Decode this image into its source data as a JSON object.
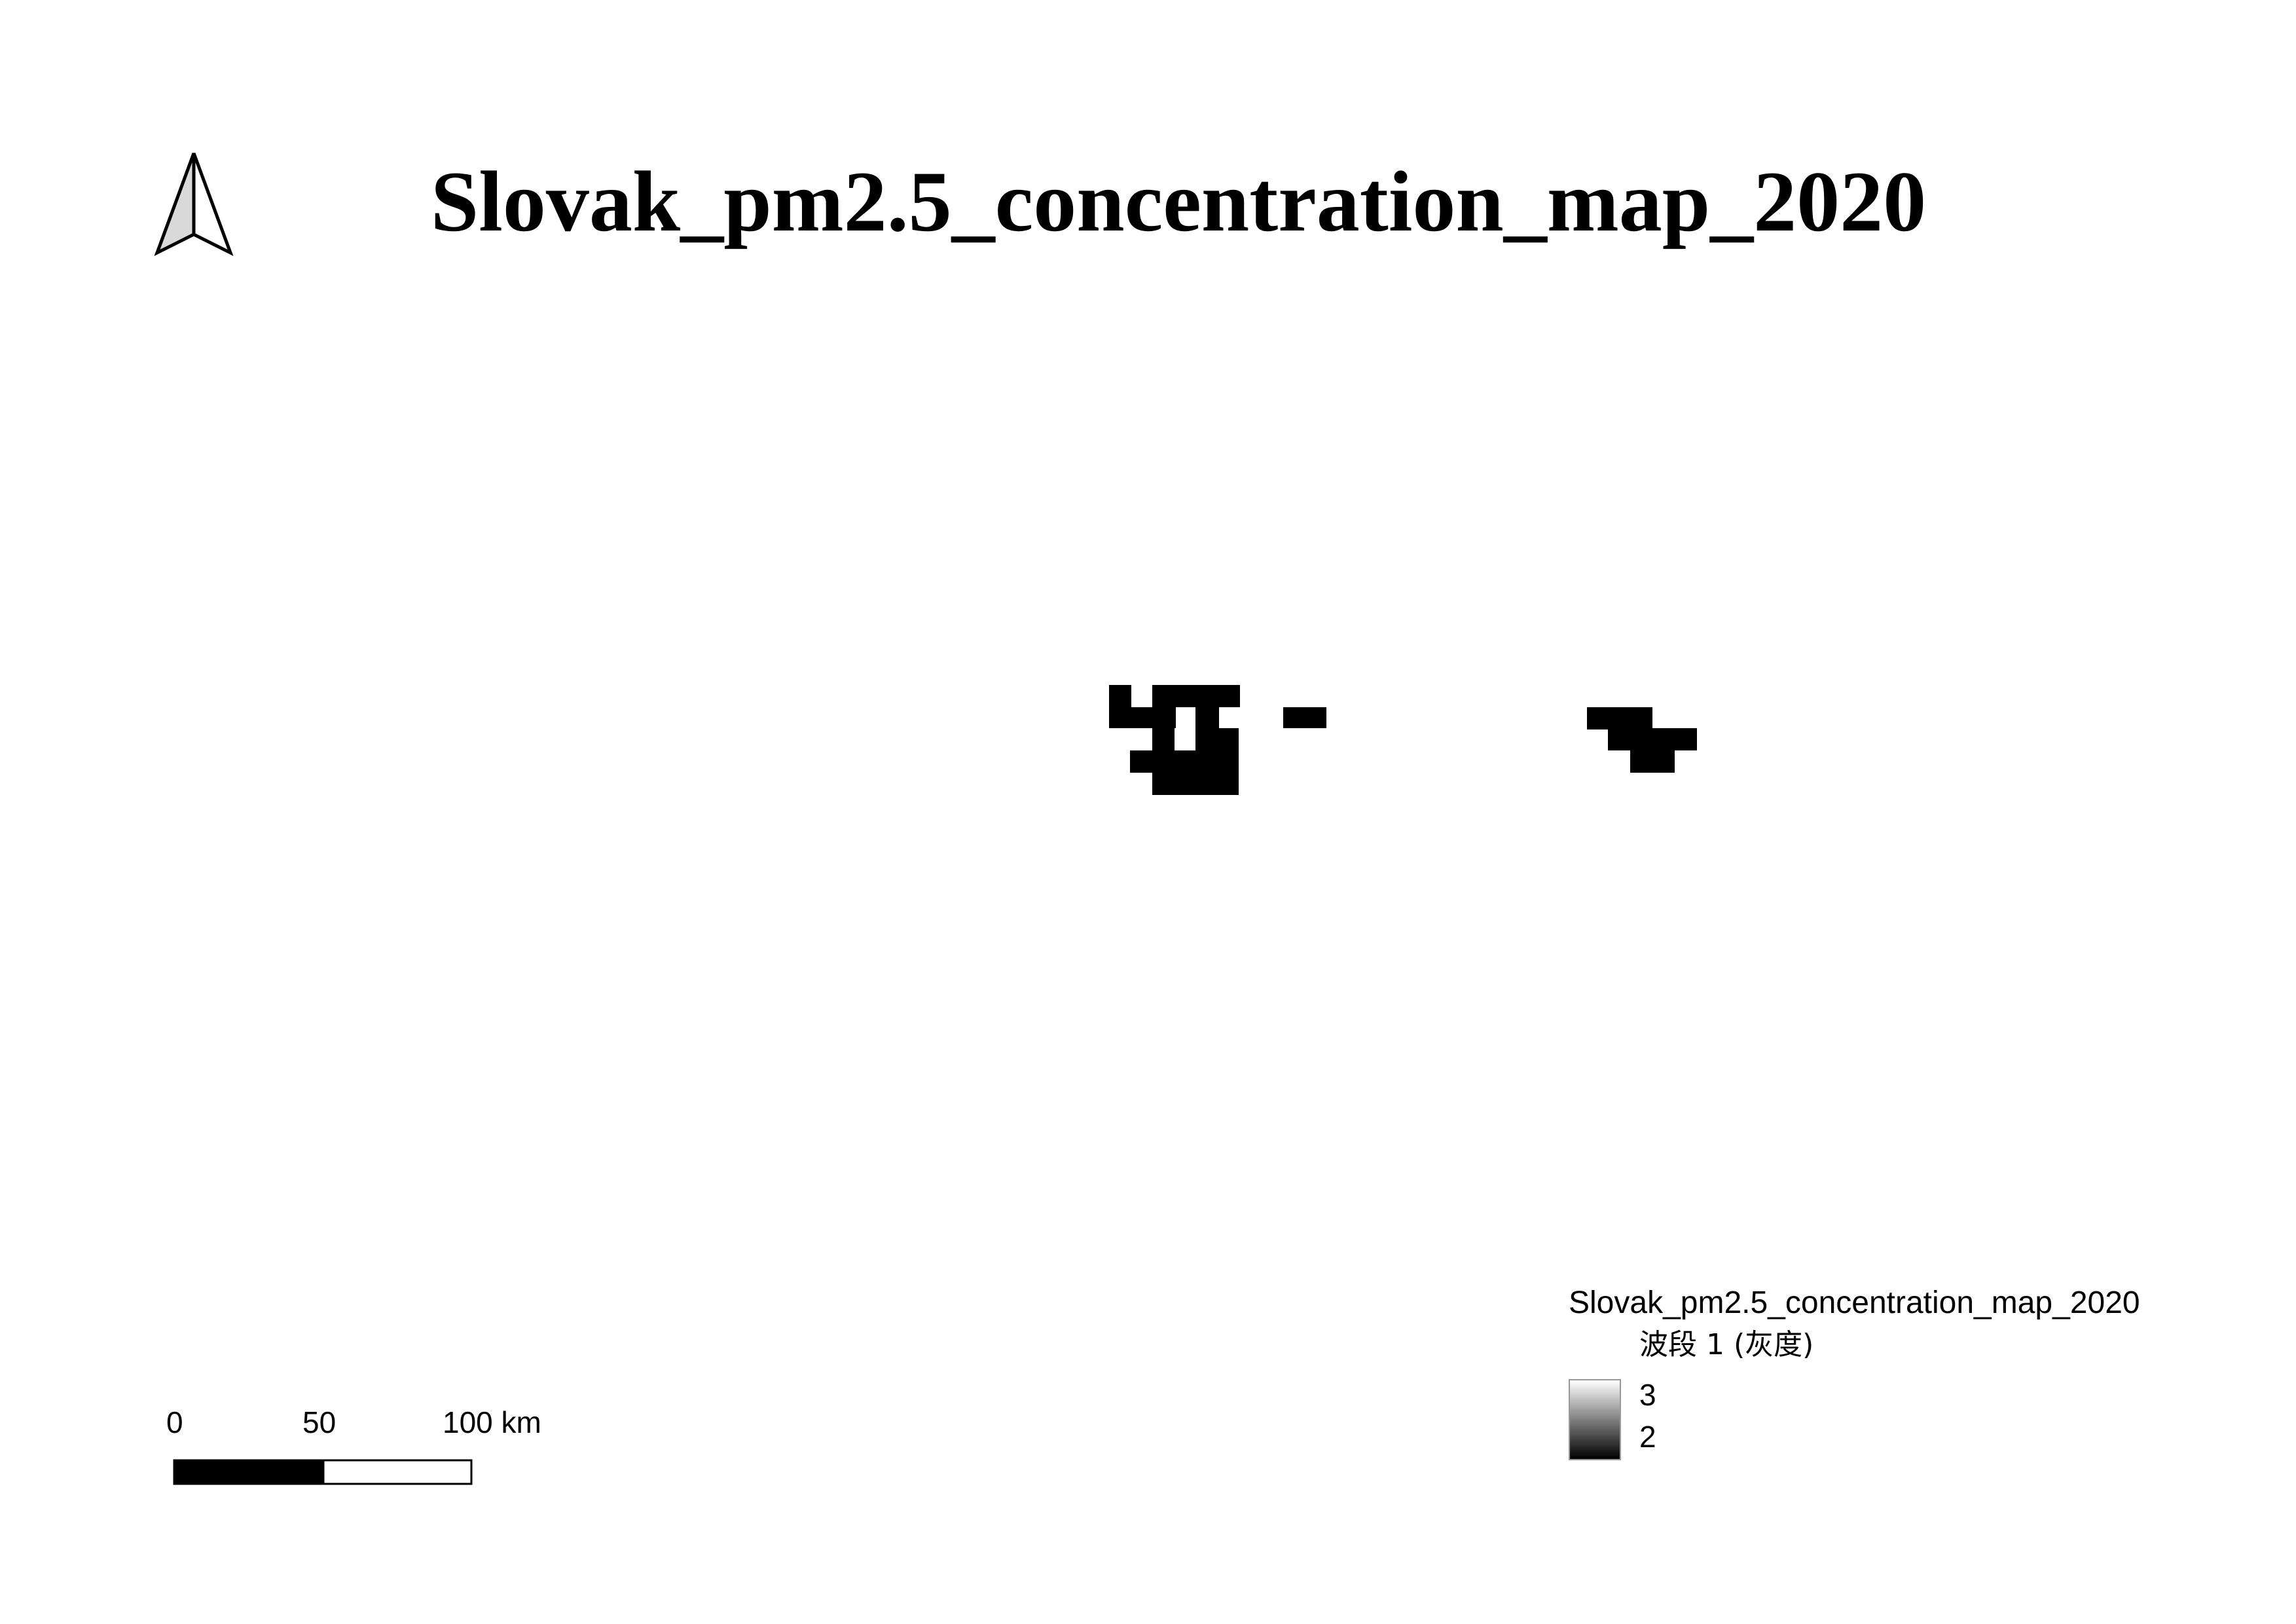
{
  "title": "Slovak_pm2.5_concentration_map_2020",
  "north_arrow": {
    "icon": "north-arrow-icon"
  },
  "scale_bar": {
    "labels": [
      "0",
      "50",
      "100 km"
    ],
    "colors": {
      "filled": "#000000",
      "empty": "#ffffff"
    }
  },
  "legend": {
    "layer_name": "Slovak_pm2.5_concentration_map_2020",
    "band_label": "波段 1 (灰度)",
    "max_value": "3",
    "min_value": "2",
    "ramp_colors": [
      "#ffffff",
      "#000000"
    ]
  },
  "raster": {
    "cell_color": "#000000",
    "background_color": "#ffffff"
  }
}
